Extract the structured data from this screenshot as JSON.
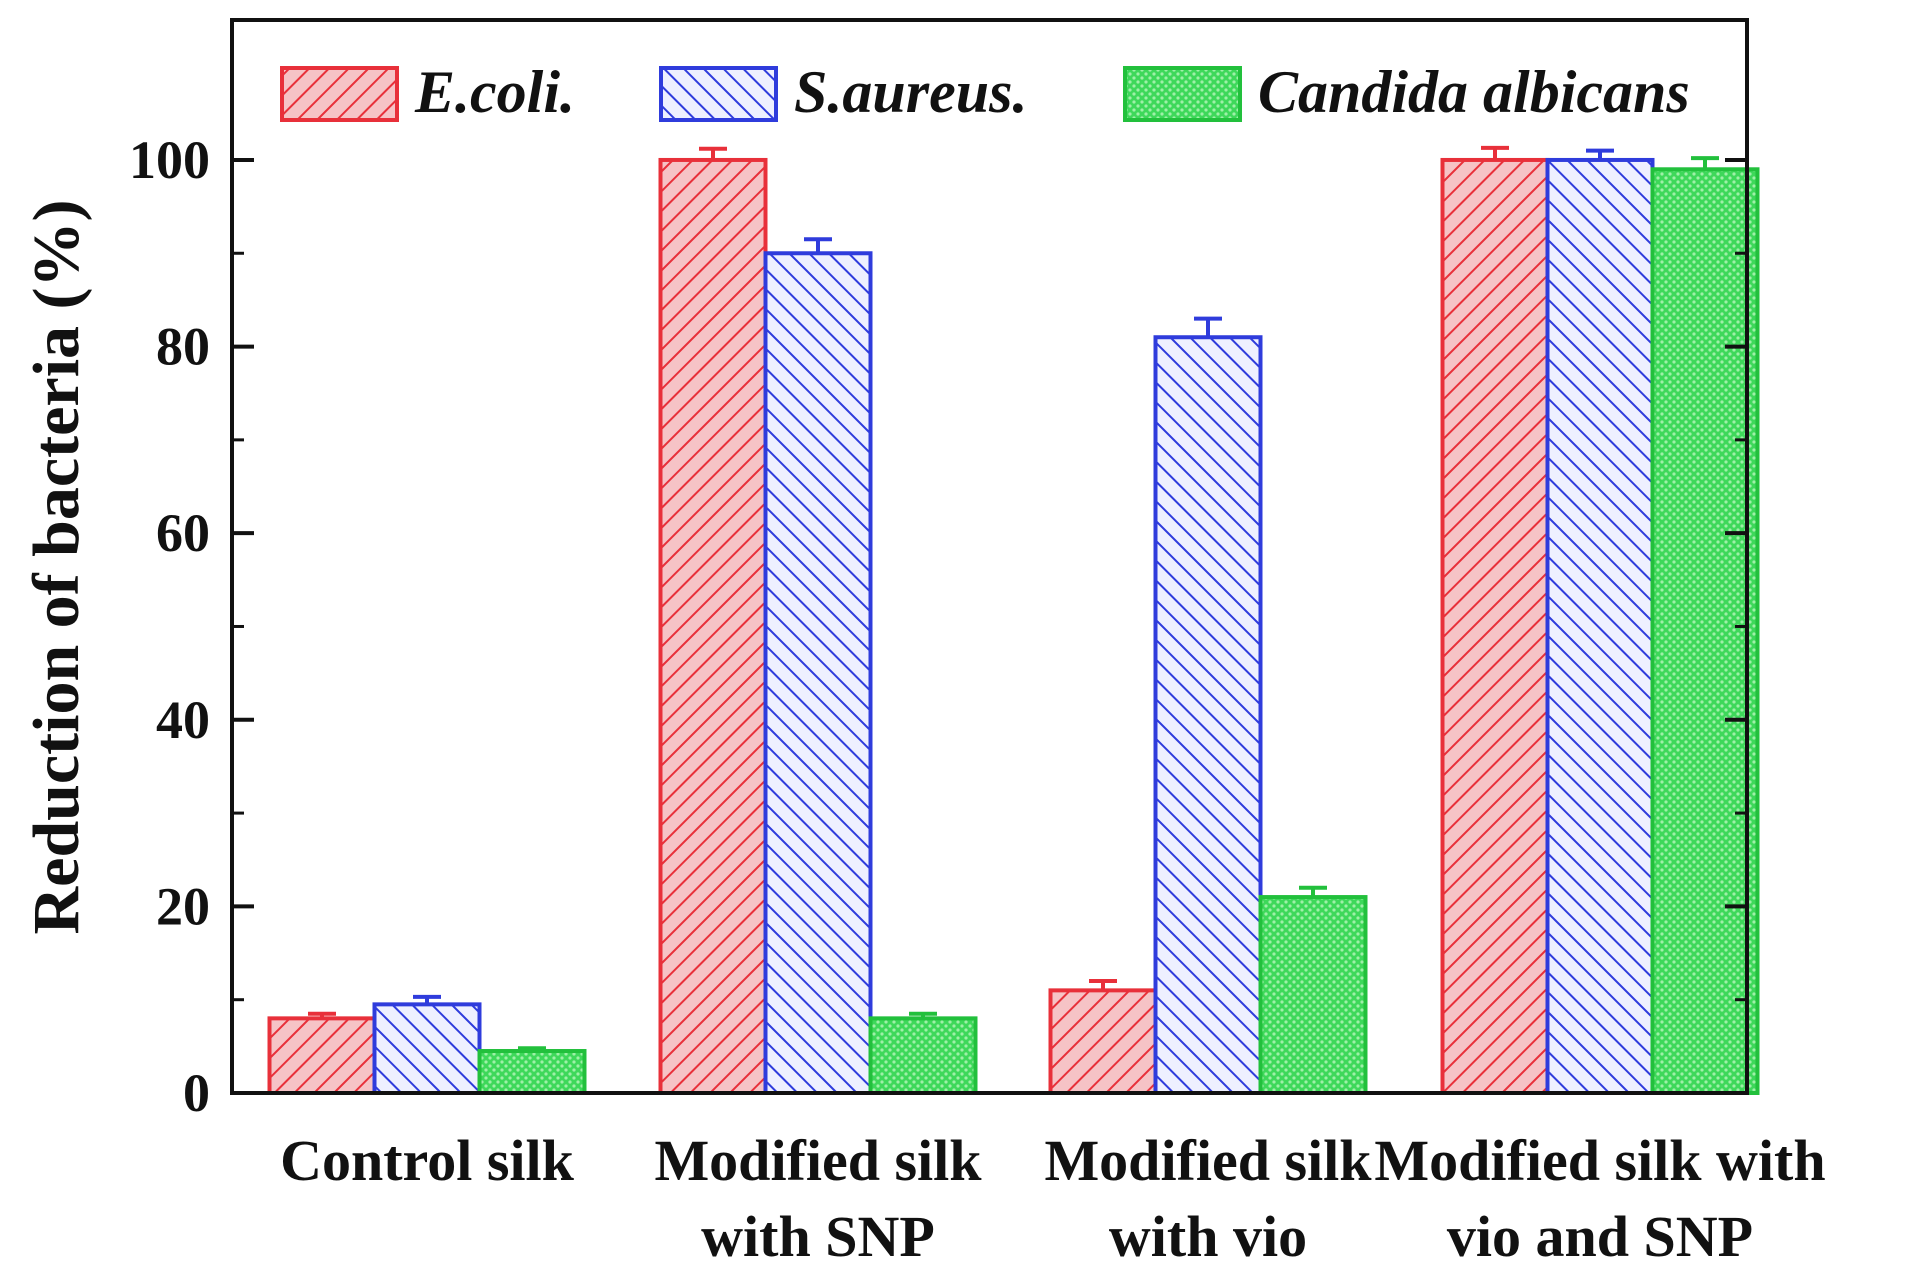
{
  "chart_data": {
    "type": "bar",
    "title": "",
    "xlabel": "",
    "ylabel": "Reduction of bacteria (%)",
    "ylim": [
      0,
      115
    ],
    "yticks": [
      0,
      20,
      40,
      60,
      80,
      100
    ],
    "categories": [
      [
        "Control silk"
      ],
      [
        "Modified silk",
        "with SNP"
      ],
      [
        "Modified silk",
        "with vio"
      ],
      [
        "Modified silk with",
        "vio and SNP"
      ]
    ],
    "series": [
      {
        "name": "E.coli.",
        "color": "#e8303a",
        "fill": "#f4b3b7",
        "pattern": "hatch-forward",
        "values": [
          8,
          100,
          11,
          100
        ],
        "errors": [
          0.5,
          1.2,
          1.0,
          1.3
        ]
      },
      {
        "name": "S.aureus.",
        "color": "#2f3cdc",
        "fill": "#b8bdf2",
        "pattern": "hatch-back",
        "values": [
          9.5,
          90,
          81,
          100
        ],
        "errors": [
          0.8,
          1.5,
          2.0,
          1.0
        ]
      },
      {
        "name": "Candida albicans",
        "color": "#22c03c",
        "fill": "#5ee06e",
        "pattern": "dots",
        "values": [
          4.5,
          8,
          21,
          99
        ],
        "errors": [
          0.3,
          0.5,
          1.0,
          1.2
        ]
      }
    ],
    "legend": "top, horizontal",
    "grid": false
  }
}
